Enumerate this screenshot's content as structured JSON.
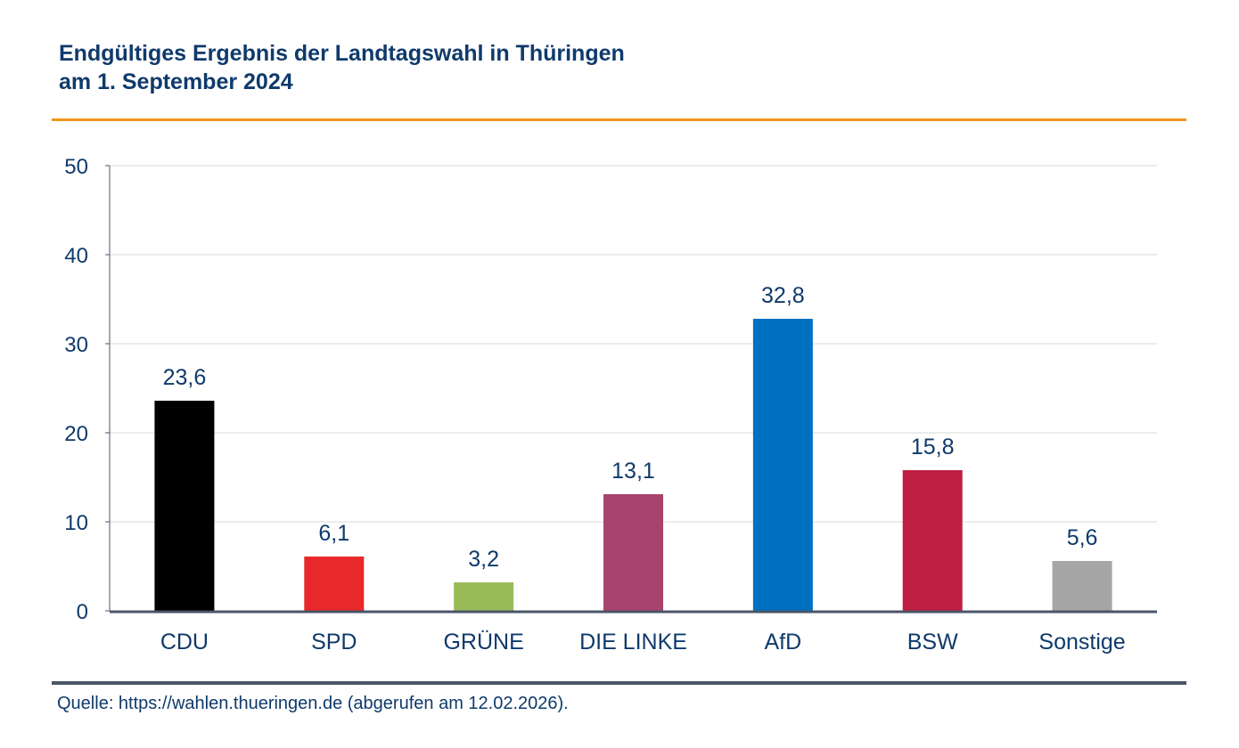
{
  "header": {
    "title_line1": "Endgültiges Ergebnis der Landtagswahl in Thüringen",
    "title_line2": "am 1. September 2024"
  },
  "footer": {
    "source": "Quelle: https://wahlen.thueringen.de (abgerufen am 12.02.2026)."
  },
  "colors": {
    "text": "#0f3a6b",
    "accent_rule": "#f0961e",
    "axis": "#4a5568",
    "grid": "#d9d9d9"
  },
  "chart_data": {
    "type": "bar",
    "title": "Endgültiges Ergebnis der Landtagswahl in Thüringen am 1. September 2024",
    "xlabel": "",
    "ylabel": "",
    "ylim": [
      0,
      50
    ],
    "yticks": [
      0,
      10,
      20,
      30,
      40,
      50
    ],
    "grid": true,
    "legend": "none",
    "categories": [
      "CDU",
      "SPD",
      "GRÜNE",
      "DIE LINKE",
      "AfD",
      "BSW",
      "Sonstige"
    ],
    "values": [
      23.6,
      6.1,
      3.2,
      13.1,
      32.8,
      15.8,
      5.6
    ],
    "value_labels": [
      "23,6",
      "6,1",
      "3,2",
      "13,1",
      "32,8",
      "15,8",
      "5,6"
    ],
    "bar_colors": [
      "#000000",
      "#e8282a",
      "#9bbb59",
      "#a8426e",
      "#0070c0",
      "#be1e42",
      "#a6a6a6"
    ]
  }
}
